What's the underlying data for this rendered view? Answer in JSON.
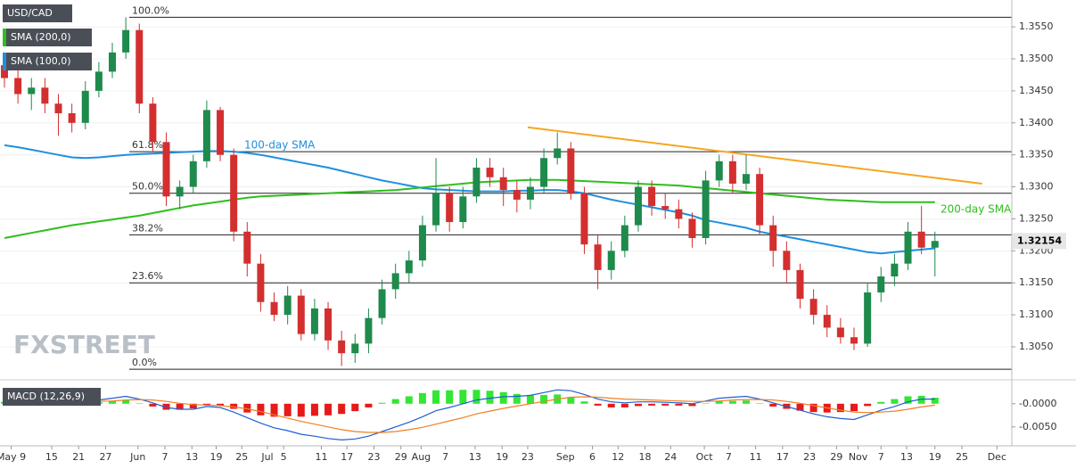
{
  "chart_data": {
    "type": "candlestick",
    "title": "USD/CAD",
    "legend": [
      "SMA (200,0)",
      "SMA (100,0)"
    ],
    "watermark": "FXSTREET",
    "up_color": "#1e8a4c",
    "down_color": "#d32f2f",
    "xlim": [
      -0.33,
      74.7
    ],
    "ylim": [
      1.3004,
      1.3585
    ],
    "yticks": [
      {
        "value": 1.305,
        "label": "1.3050"
      },
      {
        "value": 1.31,
        "label": "1.3100"
      },
      {
        "value": 1.315,
        "label": "1.3150"
      },
      {
        "value": 1.32,
        "label": "1.3200"
      },
      {
        "value": 1.325,
        "label": "1.3250"
      },
      {
        "value": 1.33,
        "label": "1.3300"
      },
      {
        "value": 1.335,
        "label": "1.3350"
      },
      {
        "value": 1.34,
        "label": "1.3400"
      },
      {
        "value": 1.345,
        "label": "1.3450"
      },
      {
        "value": 1.35,
        "label": "1.3500"
      },
      {
        "value": 1.355,
        "label": "1.3550"
      }
    ],
    "xticks": [
      {
        "value": 0.5,
        "label": "May 9"
      },
      {
        "value": 3.5,
        "label": "15"
      },
      {
        "value": 5.5,
        "label": "21"
      },
      {
        "value": 7.5,
        "label": "27"
      },
      {
        "value": 9.9,
        "label": "Jun"
      },
      {
        "value": 11.9,
        "label": "7"
      },
      {
        "value": 13.9,
        "label": "13"
      },
      {
        "value": 15.7,
        "label": "19"
      },
      {
        "value": 17.6,
        "label": "25"
      },
      {
        "value": 19.5,
        "label": "Jul"
      },
      {
        "value": 20.7,
        "label": "5"
      },
      {
        "value": 23.5,
        "label": "11"
      },
      {
        "value": 25.4,
        "label": "17"
      },
      {
        "value": 27.4,
        "label": "23"
      },
      {
        "value": 29.4,
        "label": "29"
      },
      {
        "value": 30.9,
        "label": "Aug"
      },
      {
        "value": 32.7,
        "label": "7"
      },
      {
        "value": 34.9,
        "label": "13"
      },
      {
        "value": 36.9,
        "label": "19"
      },
      {
        "value": 38.8,
        "label": "23"
      },
      {
        "value": 41.6,
        "label": "Sep"
      },
      {
        "value": 43.6,
        "label": "6"
      },
      {
        "value": 45.5,
        "label": "12"
      },
      {
        "value": 47.5,
        "label": "18"
      },
      {
        "value": 49.4,
        "label": "24"
      },
      {
        "value": 51.9,
        "label": "Oct"
      },
      {
        "value": 53.7,
        "label": "7"
      },
      {
        "value": 55.7,
        "label": "11"
      },
      {
        "value": 57.7,
        "label": "17"
      },
      {
        "value": 59.7,
        "label": "23"
      },
      {
        "value": 61.7,
        "label": "29"
      },
      {
        "value": 63.3,
        "label": "Nov"
      },
      {
        "value": 65,
        "label": "7"
      },
      {
        "value": 66.9,
        "label": "13"
      },
      {
        "value": 69,
        "label": "19"
      },
      {
        "value": 71,
        "label": "25"
      },
      {
        "value": 73.6,
        "label": "Dec"
      }
    ],
    "last_price": 1.32154,
    "candles": [
      [
        1.349,
        1.351,
        1.3455,
        1.347
      ],
      [
        1.347,
        1.3485,
        1.343,
        1.3445
      ],
      [
        1.3445,
        1.347,
        1.342,
        1.3455
      ],
      [
        1.3455,
        1.347,
        1.3415,
        1.343
      ],
      [
        1.343,
        1.3445,
        1.338,
        1.3415
      ],
      [
        1.3415,
        1.343,
        1.3385,
        1.34
      ],
      [
        1.34,
        1.3465,
        1.339,
        1.345
      ],
      [
        1.345,
        1.3495,
        1.344,
        1.348
      ],
      [
        1.348,
        1.3525,
        1.347,
        1.351
      ],
      [
        1.351,
        1.3565,
        1.35,
        1.3545
      ],
      [
        1.3545,
        1.3555,
        1.3415,
        1.343
      ],
      [
        1.343,
        1.344,
        1.3355,
        1.337
      ],
      [
        1.337,
        1.3385,
        1.327,
        1.3285
      ],
      [
        1.3285,
        1.331,
        1.3265,
        1.33
      ],
      [
        1.33,
        1.335,
        1.329,
        1.334
      ],
      [
        1.334,
        1.3435,
        1.333,
        1.342
      ],
      [
        1.342,
        1.3425,
        1.334,
        1.335
      ],
      [
        1.335,
        1.336,
        1.3215,
        1.323
      ],
      [
        1.323,
        1.3245,
        1.316,
        1.318
      ],
      [
        1.318,
        1.3195,
        1.3105,
        1.312
      ],
      [
        1.312,
        1.3135,
        1.309,
        1.31
      ],
      [
        1.31,
        1.3145,
        1.3085,
        1.313
      ],
      [
        1.313,
        1.314,
        1.306,
        1.307
      ],
      [
        1.307,
        1.3125,
        1.306,
        1.311
      ],
      [
        1.311,
        1.312,
        1.3045,
        1.306
      ],
      [
        1.306,
        1.3075,
        1.302,
        1.304
      ],
      [
        1.304,
        1.307,
        1.3025,
        1.3055
      ],
      [
        1.3055,
        1.311,
        1.304,
        1.3095
      ],
      [
        1.3095,
        1.3155,
        1.3085,
        1.314
      ],
      [
        1.314,
        1.318,
        1.3125,
        1.3165
      ],
      [
        1.3165,
        1.32,
        1.315,
        1.3185
      ],
      [
        1.3185,
        1.3255,
        1.3175,
        1.324
      ],
      [
        1.324,
        1.3345,
        1.323,
        1.329
      ],
      [
        1.329,
        1.33,
        1.323,
        1.3245
      ],
      [
        1.3245,
        1.33,
        1.3235,
        1.3285
      ],
      [
        1.3285,
        1.3345,
        1.3275,
        1.333
      ],
      [
        1.333,
        1.3345,
        1.33,
        1.3315
      ],
      [
        1.3315,
        1.333,
        1.327,
        1.3295
      ],
      [
        1.3295,
        1.331,
        1.326,
        1.328
      ],
      [
        1.328,
        1.3315,
        1.3265,
        1.33
      ],
      [
        1.33,
        1.336,
        1.329,
        1.3345
      ],
      [
        1.3345,
        1.3385,
        1.3335,
        1.336
      ],
      [
        1.336,
        1.337,
        1.328,
        1.329
      ],
      [
        1.329,
        1.33,
        1.3195,
        1.321
      ],
      [
        1.321,
        1.3225,
        1.314,
        1.317
      ],
      [
        1.317,
        1.3215,
        1.3155,
        1.32
      ],
      [
        1.32,
        1.3255,
        1.319,
        1.324
      ],
      [
        1.324,
        1.331,
        1.323,
        1.33
      ],
      [
        1.33,
        1.331,
        1.3255,
        1.327
      ],
      [
        1.327,
        1.329,
        1.325,
        1.3265
      ],
      [
        1.3265,
        1.328,
        1.3235,
        1.325
      ],
      [
        1.325,
        1.326,
        1.3205,
        1.322
      ],
      [
        1.322,
        1.3325,
        1.321,
        1.331
      ],
      [
        1.331,
        1.335,
        1.33,
        1.334
      ],
      [
        1.334,
        1.335,
        1.329,
        1.3305
      ],
      [
        1.3305,
        1.335,
        1.3295,
        1.332
      ],
      [
        1.332,
        1.333,
        1.3225,
        1.324
      ],
      [
        1.324,
        1.3255,
        1.3175,
        1.32
      ],
      [
        1.32,
        1.3215,
        1.315,
        1.317
      ],
      [
        1.317,
        1.318,
        1.311,
        1.3125
      ],
      [
        1.3125,
        1.314,
        1.3085,
        1.31
      ],
      [
        1.31,
        1.3115,
        1.3065,
        1.308
      ],
      [
        1.308,
        1.3095,
        1.3055,
        1.3065
      ],
      [
        1.3065,
        1.308,
        1.3045,
        1.3055
      ],
      [
        1.3055,
        1.315,
        1.305,
        1.3135
      ],
      [
        1.3135,
        1.3175,
        1.312,
        1.316
      ],
      [
        1.316,
        1.3195,
        1.3145,
        1.318
      ],
      [
        1.318,
        1.3245,
        1.317,
        1.323
      ],
      [
        1.323,
        1.327,
        1.3195,
        1.3205
      ],
      [
        1.3205,
        1.323,
        1.316,
        1.32154
      ]
    ],
    "series": [
      {
        "name": "100-day SMA",
        "color": "#1e8fe0",
        "values": [
          1.3365,
          1.3362,
          1.3358,
          1.3354,
          1.335,
          1.3346,
          1.3345,
          1.3346,
          1.3348,
          1.335,
          1.3351,
          1.3352,
          1.3353,
          1.3354,
          1.3355,
          1.3356,
          1.3356,
          1.3355,
          1.3353,
          1.335,
          1.3346,
          1.3342,
          1.3338,
          1.3334,
          1.333,
          1.3325,
          1.332,
          1.3315,
          1.331,
          1.3306,
          1.3302,
          1.3298,
          1.3296,
          1.3295,
          1.3294,
          1.3293,
          1.3293,
          1.3293,
          1.3294,
          1.3294,
          1.3295,
          1.3295,
          1.3293,
          1.329,
          1.3285,
          1.328,
          1.3276,
          1.3272,
          1.3268,
          1.3264,
          1.326,
          1.3255,
          1.3248,
          1.3244,
          1.324,
          1.3236,
          1.323,
          1.3226,
          1.3222,
          1.3218,
          1.3214,
          1.321,
          1.3206,
          1.3202,
          1.3198,
          1.3196,
          1.3198,
          1.32,
          1.3202,
          1.3204
        ]
      },
      {
        "name": "200-day SMA",
        "color": "#2ebf1c",
        "values": [
          1.322,
          1.3224,
          1.3228,
          1.3232,
          1.3236,
          1.324,
          1.3243,
          1.3246,
          1.3249,
          1.3252,
          1.3255,
          1.3259,
          1.3263,
          1.3267,
          1.3271,
          1.3274,
          1.3277,
          1.328,
          1.3283,
          1.3285,
          1.3286,
          1.3287,
          1.3288,
          1.3289,
          1.329,
          1.3291,
          1.3292,
          1.3293,
          1.3294,
          1.3295,
          1.3297,
          1.3299,
          1.3301,
          1.3303,
          1.3305,
          1.3307,
          1.3308,
          1.3309,
          1.331,
          1.3311,
          1.3311,
          1.3311,
          1.331,
          1.3309,
          1.3308,
          1.3307,
          1.3306,
          1.3305,
          1.3304,
          1.3303,
          1.3302,
          1.33,
          1.3298,
          1.3296,
          1.3294,
          1.3292,
          1.329,
          1.3288,
          1.3286,
          1.3284,
          1.3282,
          1.328,
          1.3279,
          1.3278,
          1.3277,
          1.3276,
          1.3276,
          1.3276,
          1.3276,
          1.3276
        ]
      }
    ],
    "fib_levels": [
      {
        "label": "100.0%",
        "value": 1.3565
      },
      {
        "label": "61.8%",
        "value": 1.3355
      },
      {
        "label": "50.0%",
        "value": 1.329
      },
      {
        "label": "38.2%",
        "value": 1.3225
      },
      {
        "label": "23.6%",
        "value": 1.315
      },
      {
        "label": "0.0%",
        "value": 1.3015
      }
    ],
    "trendline": {
      "color": "#f5a623",
      "x": [
        38.8,
        72.5
      ],
      "y": [
        1.3393,
        1.3305
      ]
    },
    "macd": {
      "title": "MACD (12,26,9)",
      "ylim": [
        -0.0085,
        0.004
      ],
      "yticks": [
        {
          "value": 0,
          "label": "-0.0000"
        },
        {
          "value": -0.005,
          "label": "-0.0050"
        }
      ],
      "pos_color": "#33e633",
      "neg_color": "#e61a1a",
      "macd_color": "#1f5fd0",
      "signal_color": "#f08020",
      "macd": [
        0.001,
        0.0008,
        0.0006,
        0.0004,
        0.0002,
        0.0001,
        0.0004,
        0.0008,
        0.0012,
        0.0016,
        0.001,
        0.0002,
        -0.0008,
        -0.0012,
        -0.0012,
        -0.0006,
        -0.0008,
        -0.0018,
        -0.003,
        -0.0042,
        -0.0052,
        -0.0058,
        -0.0066,
        -0.007,
        -0.0075,
        -0.0078,
        -0.0076,
        -0.007,
        -0.006,
        -0.005,
        -0.004,
        -0.0028,
        -0.0015,
        -0.0008,
        0.0,
        0.0008,
        0.0012,
        0.0015,
        0.0016,
        0.0018,
        0.0024,
        0.003,
        0.0028,
        0.002,
        0.001,
        0.0004,
        0.0002,
        0.0004,
        0.0004,
        0.0003,
        0.0002,
        0.0,
        0.0006,
        0.0012,
        0.0014,
        0.0016,
        0.001,
        0.0002,
        -0.0006,
        -0.0014,
        -0.0022,
        -0.0028,
        -0.0032,
        -0.0034,
        -0.0024,
        -0.0014,
        -0.0006,
        0.0004,
        0.001,
        0.001
      ],
      "signal": [
        0.0006,
        0.0007,
        0.0007,
        0.0006,
        0.0005,
        0.0004,
        0.0004,
        0.0005,
        0.0006,
        0.0008,
        0.0009,
        0.0008,
        0.0005,
        0.0001,
        -0.0002,
        -0.0003,
        -0.0004,
        -0.0007,
        -0.0011,
        -0.0017,
        -0.0024,
        -0.0031,
        -0.0038,
        -0.0044,
        -0.005,
        -0.0056,
        -0.006,
        -0.0062,
        -0.0062,
        -0.006,
        -0.0056,
        -0.0051,
        -0.0044,
        -0.0037,
        -0.003,
        -0.0022,
        -0.0016,
        -0.001,
        -0.0005,
        0.0,
        0.0005,
        0.001,
        0.0014,
        0.0015,
        0.0014,
        0.0012,
        0.001,
        0.0009,
        0.0008,
        0.0007,
        0.0006,
        0.0005,
        0.0005,
        0.0006,
        0.0008,
        0.0009,
        0.0009,
        0.0008,
        0.0005,
        0.0001,
        -0.0004,
        -0.0009,
        -0.0014,
        -0.0018,
        -0.0019,
        -0.0018,
        -0.0016,
        -0.0012,
        -0.0007,
        -0.0003
      ],
      "histogram": [
        0.0004,
        0.0001,
        -0.0001,
        -0.0002,
        -0.0003,
        -0.0003,
        0,
        0.0003,
        0.0006,
        0.0008,
        0.0001,
        -0.0006,
        -0.0013,
        -0.0013,
        -0.001,
        -0.0003,
        -0.0004,
        -0.0011,
        -0.0019,
        -0.0025,
        -0.0028,
        -0.0027,
        -0.0028,
        -0.0026,
        -0.0025,
        -0.0022,
        -0.0016,
        -0.0008,
        0.0002,
        0.001,
        0.0016,
        0.0023,
        0.0029,
        0.0029,
        0.003,
        0.003,
        0.0028,
        0.0025,
        0.0021,
        0.0018,
        0.0019,
        0.002,
        0.0014,
        0.0005,
        -0.0004,
        -0.0008,
        -0.0008,
        -0.0005,
        -0.0004,
        -0.0004,
        -0.0004,
        -0.0005,
        0.0001,
        0.0006,
        0.0006,
        0.0007,
        0.0001,
        -0.0006,
        -0.0011,
        -0.0015,
        -0.0018,
        -0.0019,
        -0.0018,
        -0.0016,
        -0.0005,
        0.0004,
        0.001,
        0.0016,
        0.0017,
        0.0013
      ]
    }
  }
}
